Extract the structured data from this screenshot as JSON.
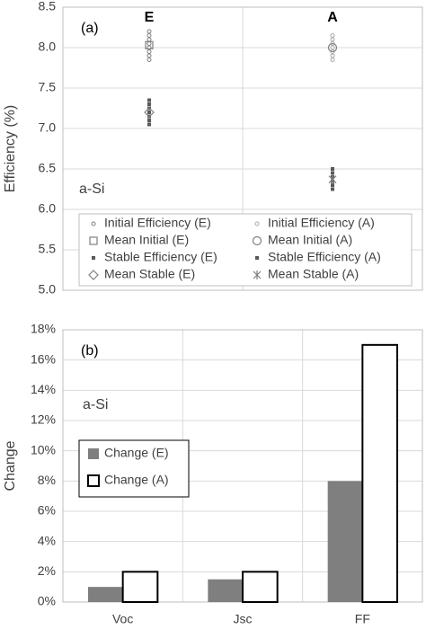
{
  "chart_data": [
    {
      "type": "scatter",
      "panel_label": "(a)",
      "annotation": "a-Si",
      "ylabel": "Efficiency (%)",
      "categories": [
        "E",
        "A"
      ],
      "ylim": [
        5,
        8.5
      ],
      "yticks": [
        {
          "value": 5,
          "label": "5.0"
        },
        5.5,
        {
          "value": 6,
          "label": "6.0"
        },
        6.5,
        {
          "value": 7,
          "label": "7.0"
        },
        7.5,
        {
          "value": 8,
          "label": "8.0"
        },
        8.5
      ],
      "grid": true,
      "series": [
        {
          "name": "Initial Efficiency (E)",
          "color": "#7f7f7f",
          "marker": "circle",
          "values": [
            [
              7.85,
              7.9,
              7.95,
              8.0,
              8.05,
              8.1,
              8.15,
              8.2
            ],
            null
          ]
        },
        {
          "name": "Initial Efficiency (A)",
          "color": "#a6a6a6",
          "marker": "circle",
          "values": [
            null,
            [
              7.85,
              7.9,
              7.95,
              8.0,
              8.05,
              8.1,
              8.15
            ]
          ]
        },
        {
          "name": "Mean Initial (E)",
          "color": "#7f7f7f",
          "marker": "square",
          "values": [
            8.03,
            null
          ]
        },
        {
          "name": "Mean Initial (A)",
          "color": "#7f7f7f",
          "marker": "bigcircle",
          "values": [
            null,
            8.0
          ]
        },
        {
          "name": "Stable Efficiency (E)",
          "color": "#595959",
          "marker": "filled",
          "values": [
            [
              7.05,
              7.1,
              7.15,
              7.2,
              7.25,
              7.3,
              7.35
            ],
            null
          ]
        },
        {
          "name": "Stable Efficiency (A)",
          "color": "#595959",
          "marker": "filled",
          "values": [
            null,
            [
              6.25,
              6.3,
              6.35,
              6.4,
              6.45,
              6.5
            ]
          ]
        },
        {
          "name": "Mean Stable (E)",
          "color": "#7f7f7f",
          "marker": "diamond",
          "values": [
            7.2,
            null
          ]
        },
        {
          "name": "Mean Stable (A)",
          "color": "#7f7f7f",
          "marker": "star",
          "values": [
            null,
            6.37
          ]
        }
      ]
    },
    {
      "type": "bar",
      "panel_label": "(b)",
      "annotation": "a-Si",
      "ylabel": "Change",
      "categories": [
        "Voc",
        "Jsc",
        "FF"
      ],
      "ylim": [
        0,
        18
      ],
      "yticks": [
        {
          "value": 0,
          "label": "0%"
        },
        {
          "value": 2,
          "label": "2%"
        },
        {
          "value": 4,
          "label": "4%"
        },
        {
          "value": 6,
          "label": "6%"
        },
        {
          "value": 8,
          "label": "8%"
        },
        {
          "value": 10,
          "label": "10%"
        },
        {
          "value": 12,
          "label": "12%"
        },
        {
          "value": 14,
          "label": "14%"
        },
        {
          "value": 16,
          "label": "16%"
        },
        {
          "value": 18,
          "label": "18%"
        }
      ],
      "grid": true,
      "series": [
        {
          "name": "Change (E)",
          "color": "#7f7f7f",
          "values": [
            1.0,
            1.5,
            8.0
          ]
        },
        {
          "name": "Change (A)",
          "color": "#ffffff",
          "values": [
            2.0,
            2.0,
            17.0
          ]
        }
      ]
    }
  ]
}
